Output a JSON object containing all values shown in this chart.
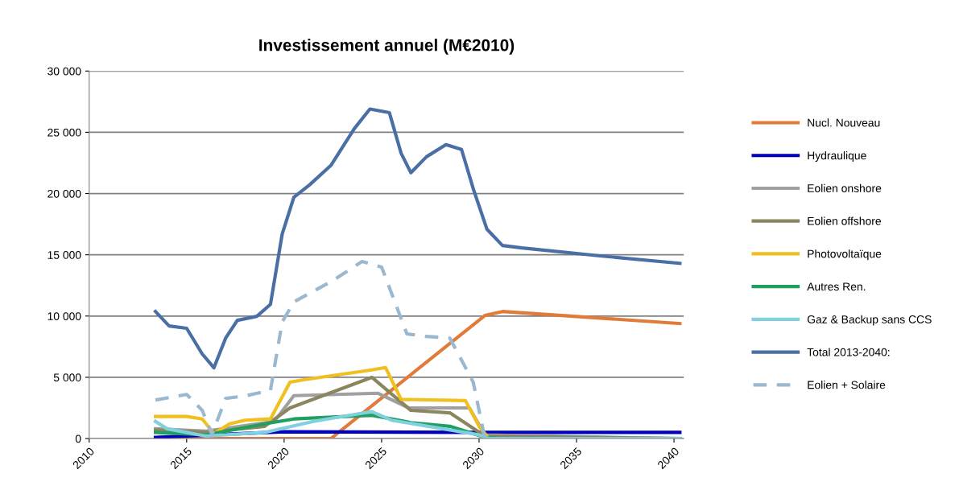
{
  "chart_data": {
    "type": "line",
    "title": "Investissement annuel (M€2010)",
    "xlim": [
      2010,
      2040.5
    ],
    "xticks": [
      2010,
      2015,
      2020,
      2025,
      2030,
      2035,
      2040
    ],
    "ylim": [
      0,
      30000
    ],
    "yticks": [
      {
        "value": 0,
        "label": "0"
      },
      {
        "value": 5000,
        "label": "5 000"
      },
      {
        "value": 10000,
        "label": "10 000"
      },
      {
        "value": 15000,
        "label": "15 000"
      },
      {
        "value": 20000,
        "label": "20 000"
      },
      {
        "value": 25000,
        "label": "25 000"
      },
      {
        "value": 30000,
        "label": "30 000"
      }
    ],
    "grid": "y",
    "legend": "right",
    "marker": "none",
    "series": [
      {
        "name": "Nucl. Nouveau",
        "color": "#e07b39",
        "x": [
          2013.4,
          2016,
          2020,
          2022.4,
          2030.3,
          2031.2,
          2040.3
        ],
        "values": [
          0,
          0,
          0,
          0,
          10050,
          10370,
          9390
        ]
      },
      {
        "name": "Hydraulique",
        "color": "#0000c0",
        "x": [
          2013.4,
          2020,
          2030,
          2040.3
        ],
        "values": [
          100,
          550,
          500,
          500
        ]
      },
      {
        "name": "Eolien onshore",
        "color": "#a0a0a0",
        "x": [
          2013.4,
          2016,
          2019.5,
          2020.5,
          2024.8,
          2026.4,
          2029.5,
          2030.3,
          2040.3
        ],
        "values": [
          800,
          600,
          1400,
          3500,
          3700,
          2500,
          2500,
          300,
          0
        ]
      },
      {
        "name": "Eolien offshore",
        "color": "#8b8560",
        "x": [
          2013.4,
          2016,
          2019,
          2020.3,
          2024.5,
          2026.5,
          2028.5,
          2030.3,
          2040.3
        ],
        "values": [
          700,
          500,
          1000,
          2500,
          5000,
          2300,
          2100,
          200,
          0
        ]
      },
      {
        "name": "Photovoltaïque",
        "color": "#f0c020",
        "x": [
          2013.4,
          2015,
          2015.8,
          2016.4,
          2017.2,
          2018,
          2019.3,
          2020.3,
          2021,
          2024.5,
          2025.2,
          2026,
          2029.3,
          2030,
          2030.5,
          2040.3
        ],
        "values": [
          1800,
          1800,
          1600,
          400,
          1200,
          1500,
          1600,
          4600,
          4800,
          5600,
          5800,
          3200,
          3100,
          1000,
          0,
          0
        ]
      },
      {
        "name": "Autres Ren.",
        "color": "#20a060",
        "x": [
          2013.4,
          2016,
          2019,
          2020.5,
          2024.5,
          2026.5,
          2028.5,
          2030.3,
          2031,
          2040.3
        ],
        "values": [
          500,
          300,
          1200,
          1600,
          1900,
          1300,
          1000,
          100,
          0,
          0
        ]
      },
      {
        "name": "Gaz & Backup sans CCS",
        "color": "#80d0e0",
        "x": [
          2013.4,
          2014,
          2016,
          2019,
          2021.5,
          2024.5,
          2025.5,
          2030,
          2030.5,
          2040.3
        ],
        "values": [
          1400,
          800,
          200,
          500,
          1400,
          2200,
          1500,
          300,
          0,
          0
        ]
      },
      {
        "name": "Total 2013-2040:",
        "color": "#4a6fa5",
        "x": [
          2013.4,
          2014.1,
          2015.0,
          2015.8,
          2016.4,
          2017.0,
          2017.6,
          2018.6,
          2019.3,
          2019.9,
          2020.5,
          2021.3,
          2022.4,
          2023.6,
          2024.4,
          2025.4,
          2026.0,
          2026.5,
          2027.3,
          2028.3,
          2029.1,
          2029.7,
          2030.4,
          2031.2,
          2032.2,
          2036.3,
          2040.3
        ],
        "values": [
          10370,
          9190,
          9000,
          6900,
          5780,
          8200,
          9650,
          9980,
          10960,
          16700,
          19700,
          20700,
          22300,
          25300,
          26900,
          26600,
          23300,
          21700,
          23000,
          24000,
          23600,
          20400,
          17100,
          15760,
          15560,
          14900,
          14300
        ]
      },
      {
        "name": "Eolien + Solaire",
        "color": "#9ab8d0",
        "line_style": "dashed",
        "x": [
          2013.4,
          2015.0,
          2015.8,
          2016.3,
          2017.0,
          2018.0,
          2019.3,
          2019.9,
          2020.5,
          2022.4,
          2024.0,
          2025.0,
          2026.3,
          2027.3,
          2028.5,
          2029.7,
          2030.3
        ],
        "values": [
          3150,
          3600,
          2300,
          330,
          3280,
          3480,
          3940,
          9520,
          11160,
          12800,
          14450,
          14000,
          8540,
          8340,
          8200,
          4600,
          0
        ]
      }
    ]
  }
}
